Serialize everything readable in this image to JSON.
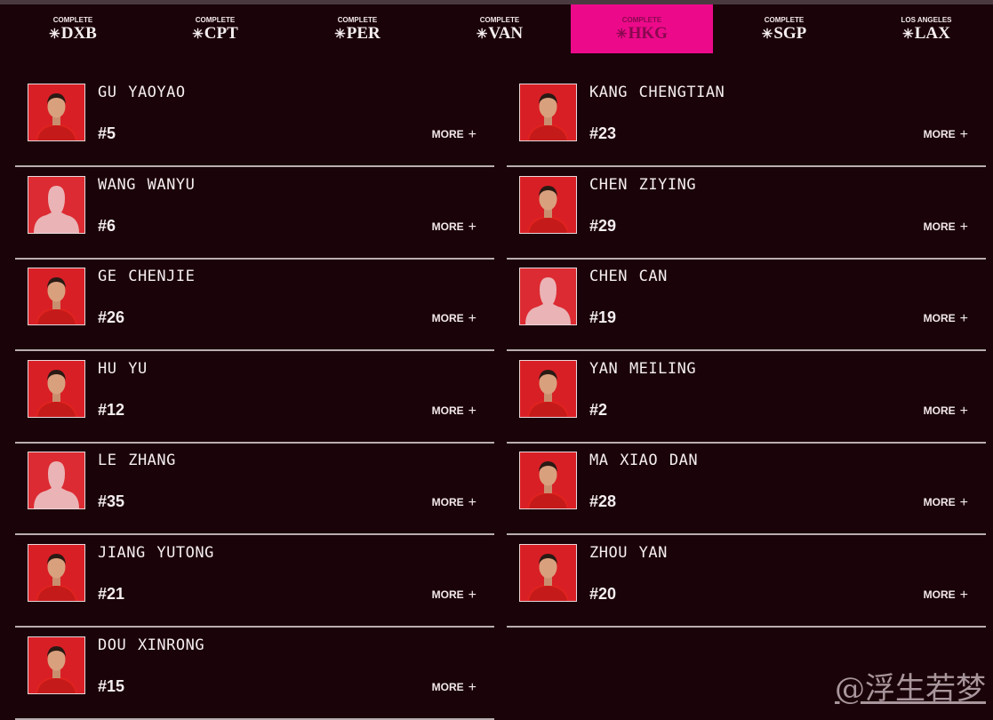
{
  "nav": {
    "tabs": [
      {
        "status": "COMPLETE",
        "code": "DXB",
        "active": false
      },
      {
        "status": "COMPLETE",
        "code": "CPT",
        "active": false
      },
      {
        "status": "COMPLETE",
        "code": "PER",
        "active": false
      },
      {
        "status": "COMPLETE",
        "code": "VAN",
        "active": false
      },
      {
        "status": "COMPLETE",
        "code": "HKG",
        "active": true
      },
      {
        "status": "COMPLETE",
        "code": "SGP",
        "active": false
      },
      {
        "status": "LOS ANGELES",
        "code": "LAX",
        "active": false
      }
    ],
    "icon": "event-star-icon",
    "active_color": "#ec0a8a"
  },
  "more_label": "MORE",
  "players_left": [
    {
      "name": "GU YAOYAO",
      "number": "#5",
      "photo": "portrait"
    },
    {
      "name": "WANG WANYU",
      "number": "#6",
      "photo": "silhouette"
    },
    {
      "name": "GE CHENJIE",
      "number": "#26",
      "photo": "portrait"
    },
    {
      "name": "HU YU",
      "number": "#12",
      "photo": "portrait"
    },
    {
      "name": "LE ZHANG",
      "number": "#35",
      "photo": "silhouette"
    },
    {
      "name": "JIANG YUTONG",
      "number": "#21",
      "photo": "portrait"
    },
    {
      "name": "DOU XINRONG",
      "number": "#15",
      "photo": "portrait"
    }
  ],
  "players_right": [
    {
      "name": "KANG CHENGTIAN",
      "number": "#23",
      "photo": "portrait"
    },
    {
      "name": "CHEN ZIYING",
      "number": "#29",
      "photo": "portrait"
    },
    {
      "name": "CHEN CAN",
      "number": "#19",
      "photo": "silhouette"
    },
    {
      "name": "YAN MEILING",
      "number": "#2",
      "photo": "portrait"
    },
    {
      "name": "MA XIAO DAN",
      "number": "#28",
      "photo": "portrait"
    },
    {
      "name": "ZHOU YAN",
      "number": "#20",
      "photo": "portrait"
    }
  ],
  "watermark": "@浮生若梦"
}
